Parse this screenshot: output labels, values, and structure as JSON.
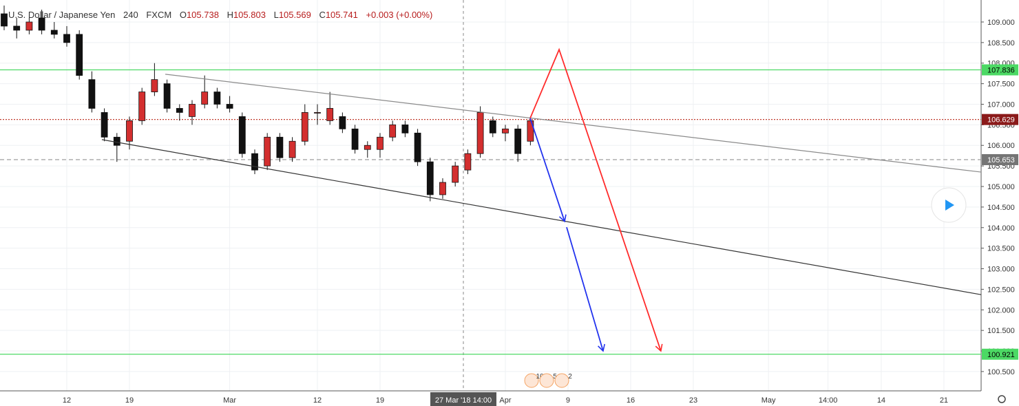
{
  "chart_data": {
    "type": "candlestick",
    "title": "U.S. Dollar / Japanese Yen",
    "interval": "240",
    "exchange": "FXCM",
    "ohlc_labels": [
      "O",
      "H",
      "L",
      "C"
    ],
    "ohlc": [
      105.738,
      105.803,
      105.569,
      105.741
    ],
    "change": "+0.003 (+0.00%)",
    "up_color": "#d32f2f",
    "down_color": "#111111",
    "grid": true,
    "xlim": [
      -5.33,
      72.97
    ],
    "ylim": [
      100.03,
      109.535
    ],
    "xticks": [
      {
        "value": 0,
        "label": "12"
      },
      {
        "value": 5,
        "label": "19"
      },
      {
        "value": 13,
        "label": "Mar"
      },
      {
        "value": 20,
        "label": "12"
      },
      {
        "value": 25,
        "label": "19"
      },
      {
        "value": 35,
        "label": "Apr"
      },
      {
        "value": 40,
        "label": "9"
      },
      {
        "value": 45,
        "label": "16"
      },
      {
        "value": 50,
        "label": "23"
      },
      {
        "value": 56,
        "label": "May"
      },
      {
        "value": 60.75,
        "label": "14:00"
      },
      {
        "value": 65,
        "label": "14"
      },
      {
        "value": 70,
        "label": "21"
      }
    ],
    "yticks": [
      {
        "value": 100.5,
        "label": "100.500"
      },
      {
        "value": 101,
        "label": "101.000"
      },
      {
        "value": 101.5,
        "label": "101.500"
      },
      {
        "value": 102,
        "label": "102.000"
      },
      {
        "value": 102.5,
        "label": "102.500"
      },
      {
        "value": 103,
        "label": "103.000"
      },
      {
        "value": 103.5,
        "label": "103.500"
      },
      {
        "value": 104,
        "label": "104.000"
      },
      {
        "value": 104.5,
        "label": "104.500"
      },
      {
        "value": 105,
        "label": "105.000"
      },
      {
        "value": 105.5,
        "label": "105.500"
      },
      {
        "value": 106,
        "label": "106.000"
      },
      {
        "value": 106.5,
        "label": "106.500"
      },
      {
        "value": 107,
        "label": "107.000"
      },
      {
        "value": 107.5,
        "label": "107.500"
      },
      {
        "value": 108,
        "label": "108.000"
      },
      {
        "value": 108.5,
        "label": "108.500"
      },
      {
        "value": 109,
        "label": "109.000"
      }
    ],
    "candles": {
      "x": [
        -5,
        -4,
        -3,
        -2,
        -1,
        0,
        1,
        2,
        3,
        4,
        5,
        6,
        7,
        8,
        9,
        10,
        11,
        12,
        13,
        14,
        15,
        16,
        17,
        18,
        19,
        20,
        21,
        22,
        23,
        24,
        25,
        26,
        27,
        28,
        29,
        30,
        31,
        32,
        33,
        34,
        35,
        36,
        37
      ],
      "open": [
        109.2,
        108.9,
        108.8,
        109.1,
        108.8,
        108.7,
        108.7,
        107.6,
        106.8,
        106.2,
        106.1,
        106.6,
        107.3,
        107.5,
        106.9,
        106.7,
        107.0,
        107.3,
        107.0,
        106.7,
        105.8,
        105.5,
        106.2,
        105.7,
        106.1,
        106.8,
        106.6,
        106.7,
        106.4,
        105.9,
        105.9,
        106.2,
        106.5,
        106.3,
        105.6,
        104.8,
        105.1,
        105.4,
        105.8,
        106.6,
        106.3,
        106.4,
        106.1
      ],
      "high": [
        109.4,
        109.1,
        109.1,
        109.3,
        109.0,
        108.9,
        108.8,
        107.8,
        106.9,
        106.3,
        106.7,
        107.4,
        108.0,
        107.6,
        107.0,
        107.1,
        107.7,
        107.4,
        107.2,
        106.8,
        105.9,
        106.3,
        106.3,
        106.2,
        107.0,
        107.0,
        107.3,
        106.8,
        106.5,
        106.1,
        106.3,
        106.6,
        106.6,
        106.4,
        105.7,
        105.2,
        105.6,
        105.9,
        106.95,
        106.7,
        106.5,
        106.5,
        106.7
      ],
      "low": [
        108.8,
        108.6,
        108.7,
        108.7,
        108.6,
        108.4,
        107.6,
        106.8,
        106.1,
        105.6,
        105.9,
        106.5,
        107.2,
        106.8,
        106.6,
        106.5,
        106.9,
        106.9,
        106.8,
        105.7,
        105.3,
        105.4,
        105.6,
        105.6,
        106.0,
        106.5,
        106.5,
        106.3,
        105.8,
        105.7,
        105.7,
        106.1,
        106.2,
        105.5,
        104.64,
        104.7,
        105.0,
        105.3,
        105.7,
        106.2,
        106.1,
        105.6,
        106.0
      ],
      "close": [
        108.9,
        108.8,
        109.0,
        108.8,
        108.7,
        108.5,
        107.7,
        106.9,
        106.2,
        106.0,
        106.6,
        107.3,
        107.6,
        106.9,
        106.8,
        107.0,
        107.3,
        107.0,
        106.9,
        105.8,
        105.4,
        106.2,
        105.7,
        106.1,
        106.8,
        106.8,
        106.9,
        106.4,
        105.9,
        106.0,
        106.2,
        106.5,
        106.3,
        105.6,
        104.8,
        105.1,
        105.5,
        105.8,
        106.8,
        106.3,
        106.4,
        105.8,
        106.6
      ]
    },
    "levels": [
      {
        "value": 107.836,
        "color": "#4cd964",
        "style": "solid",
        "label_color": "#4cd964",
        "text_color": "#000000"
      },
      {
        "value": 106.629,
        "color": "#c0392b",
        "style": "dotted",
        "label_color": "#8b1a1a",
        "text_color": "#ffffff"
      },
      {
        "value": 105.653,
        "color": "#9e9e9e",
        "style": "dashed",
        "label_color": "#757575",
        "text_color": "#ffffff"
      },
      {
        "value": 100.921,
        "color": "#4cd964",
        "style": "solid",
        "label_color": "#4cd964",
        "text_color": "#000000"
      }
    ],
    "trendlines": [
      {
        "color": "#8a8a8a",
        "arrow": false,
        "x": [
          7.86,
          72.97
        ],
        "y": [
          107.73,
          105.35
        ]
      },
      {
        "color": "#333333",
        "arrow": false,
        "x": [
          2.8,
          72.97
        ],
        "y": [
          106.14,
          102.37
        ]
      },
      {
        "color": "#ff2a2a",
        "arrow": true,
        "x": [
          36.98,
          39.29,
          47.41
        ],
        "y": [
          106.66,
          108.33,
          101.0
        ]
      },
      {
        "color": "#2233ee",
        "arrow": true,
        "x": [
          36.98,
          39.73
        ],
        "y": [
          106.66,
          104.15
        ]
      },
      {
        "color": "#2233ee",
        "arrow": true,
        "x": [
          39.89,
          42.8
        ],
        "y": [
          104.01,
          101.0
        ]
      }
    ],
    "crosshair": {
      "x": 31.65,
      "label": "27 Mar '18  14:00"
    },
    "events": [
      "10",
      "5",
      "2"
    ]
  }
}
